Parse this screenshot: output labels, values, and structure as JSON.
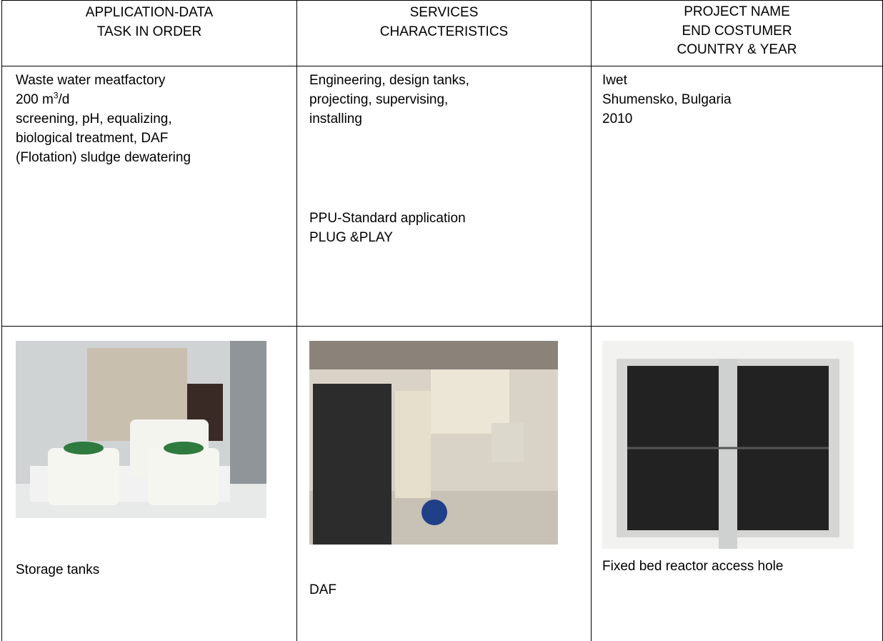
{
  "table": {
    "header": [
      [
        "APPLICATION-DATA",
        "TASK IN ORDER"
      ],
      [
        "SERVICES",
        "CHARACTERISTICS"
      ],
      [
        "PROJECT NAME",
        "END COSTUMER",
        "COUNTRY & YEAR"
      ]
    ],
    "row1": {
      "application": {
        "line1": "Waste water meatfactory",
        "capacity": {
          "number": "200 m",
          "superscript": "3",
          "unit": "/d"
        },
        "line3": "screening, pH, equalizing,",
        "line4": "biological treatment, DAF",
        "line5": "(Flotation) sludge dewatering"
      },
      "services": {
        "lines": [
          "Engineering, design tanks,",
          "projecting, supervising,",
          "installing"
        ],
        "standard": [
          "PPU-Standard application",
          "PLUG &PLAY"
        ]
      },
      "project": [
        "Iwet",
        "Shumensko, Bulgaria",
        "2010"
      ]
    },
    "row2": {
      "captions": [
        "Storage  tanks",
        "DAF",
        "Fixed bed reactor access hole"
      ]
    }
  }
}
